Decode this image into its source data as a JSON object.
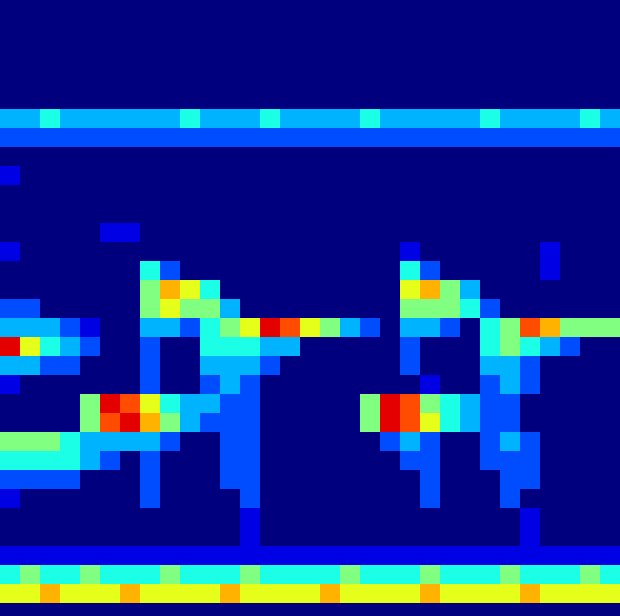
{
  "chart_data": {
    "type": "heatmap",
    "tick_labels": false,
    "zlim": [
      0,
      10
    ],
    "cells": [
      [
        0,
        0,
        0,
        0,
        0,
        0,
        0,
        0,
        0,
        0,
        0,
        0,
        0,
        0,
        0,
        0,
        0,
        0,
        0,
        0,
        0,
        0,
        0,
        0,
        0,
        0,
        0,
        0,
        0,
        0,
        0
      ],
      [
        0,
        0,
        0,
        0,
        0,
        0,
        0,
        0,
        0,
        0,
        0,
        0,
        0,
        0,
        0,
        0,
        0,
        0,
        0,
        0,
        0,
        0,
        0,
        0,
        0,
        0,
        0,
        0,
        0,
        0,
        0
      ],
      [
        0,
        0,
        0,
        0,
        0,
        0,
        0,
        0,
        0,
        0,
        0,
        0,
        0,
        0,
        0,
        0,
        0,
        0,
        0,
        0,
        0,
        0,
        0,
        0,
        0,
        0,
        0,
        0,
        0,
        0,
        0
      ],
      [
        0,
        0,
        0,
        0,
        0,
        0,
        0,
        0,
        0,
        0,
        0,
        0,
        0,
        0,
        0,
        0,
        0,
        0,
        0,
        0,
        0,
        0,
        0,
        0,
        0,
        0,
        0,
        0,
        0,
        0,
        0
      ],
      [
        0,
        0,
        0,
        0,
        0,
        0,
        0,
        0,
        0,
        0,
        0,
        0,
        0,
        0,
        0,
        0,
        0,
        0,
        0,
        0,
        0,
        0,
        0,
        0,
        0,
        0,
        0,
        0,
        0,
        0,
        0
      ],
      [
        3,
        3,
        4,
        3,
        3,
        3,
        3,
        3,
        3,
        4,
        3,
        3,
        3,
        4,
        3,
        3,
        3,
        3,
        4,
        3,
        3,
        3,
        3,
        3,
        4,
        3,
        3,
        3,
        3,
        4,
        3
      ],
      [
        2,
        2,
        2,
        2,
        2,
        2,
        2,
        2,
        2,
        2,
        2,
        2,
        2,
        2,
        2,
        2,
        2,
        2,
        2,
        2,
        2,
        2,
        2,
        2,
        2,
        2,
        2,
        2,
        2,
        2,
        2
      ],
      [
        0,
        0,
        0,
        0,
        0,
        0,
        0,
        0,
        0,
        0,
        0,
        0,
        0,
        0,
        0,
        0,
        0,
        0,
        0,
        0,
        0,
        0,
        0,
        0,
        0,
        0,
        0,
        0,
        0,
        0,
        0
      ],
      [
        1,
        0,
        0,
        0,
        0,
        0,
        0,
        0,
        0,
        0,
        0,
        0,
        0,
        0,
        0,
        0,
        0,
        0,
        0,
        0,
        0,
        0,
        0,
        0,
        0,
        0,
        0,
        0,
        0,
        0,
        0
      ],
      [
        0,
        0,
        0,
        0,
        0,
        0,
        0,
        0,
        0,
        0,
        0,
        0,
        0,
        0,
        0,
        0,
        0,
        0,
        0,
        0,
        0,
        0,
        0,
        0,
        0,
        0,
        0,
        0,
        0,
        0,
        0
      ],
      [
        0,
        0,
        0,
        0,
        0,
        0,
        0,
        0,
        0,
        0,
        0,
        0,
        0,
        0,
        0,
        0,
        0,
        0,
        0,
        0,
        0,
        0,
        0,
        0,
        0,
        0,
        0,
        0,
        0,
        0,
        0
      ],
      [
        0,
        0,
        0,
        0,
        0,
        1,
        1,
        0,
        0,
        0,
        0,
        0,
        0,
        0,
        0,
        0,
        0,
        0,
        0,
        0,
        0,
        0,
        0,
        0,
        0,
        0,
        0,
        0,
        0,
        0,
        0
      ],
      [
        1,
        0,
        0,
        0,
        0,
        0,
        0,
        0,
        0,
        0,
        0,
        0,
        0,
        0,
        0,
        0,
        0,
        0,
        0,
        0,
        1,
        0,
        0,
        0,
        0,
        0,
        0,
        1,
        0,
        0,
        0
      ],
      [
        0,
        0,
        0,
        0,
        0,
        0,
        0,
        4,
        2,
        0,
        0,
        0,
        0,
        0,
        0,
        0,
        0,
        0,
        0,
        0,
        4,
        2,
        0,
        0,
        0,
        0,
        0,
        1,
        0,
        0,
        0
      ],
      [
        0,
        0,
        0,
        0,
        0,
        0,
        0,
        5,
        7,
        6,
        4,
        0,
        0,
        0,
        0,
        0,
        0,
        0,
        0,
        0,
        6,
        7,
        5,
        3,
        0,
        0,
        0,
        0,
        0,
        0,
        0
      ],
      [
        2,
        2,
        0,
        0,
        0,
        0,
        0,
        5,
        6,
        5,
        5,
        3,
        0,
        0,
        0,
        0,
        0,
        0,
        0,
        0,
        5,
        5,
        5,
        4,
        2,
        0,
        0,
        0,
        0,
        0,
        0
      ],
      [
        3,
        3,
        3,
        2,
        1,
        0,
        0,
        3,
        3,
        2,
        4,
        5,
        6,
        9,
        8,
        6,
        5,
        3,
        2,
        0,
        3,
        3,
        2,
        0,
        4,
        5,
        8,
        7,
        5,
        5,
        5
      ],
      [
        9,
        6,
        4,
        3,
        2,
        0,
        0,
        2,
        0,
        0,
        4,
        4,
        4,
        3,
        3,
        0,
        0,
        0,
        0,
        0,
        2,
        0,
        0,
        0,
        4,
        5,
        4,
        3,
        2,
        0,
        0
      ],
      [
        3,
        3,
        2,
        2,
        0,
        0,
        0,
        2,
        0,
        0,
        3,
        3,
        3,
        2,
        0,
        0,
        0,
        0,
        0,
        0,
        2,
        0,
        0,
        0,
        3,
        3,
        2,
        0,
        0,
        0,
        0
      ],
      [
        1,
        0,
        0,
        0,
        0,
        0,
        0,
        2,
        0,
        0,
        2,
        3,
        2,
        0,
        0,
        0,
        0,
        0,
        0,
        0,
        0,
        1,
        0,
        0,
        2,
        3,
        2,
        0,
        0,
        0,
        0
      ],
      [
        0,
        0,
        0,
        0,
        5,
        9,
        8,
        6,
        4,
        3,
        3,
        2,
        2,
        0,
        0,
        0,
        0,
        0,
        5,
        9,
        8,
        5,
        4,
        3,
        2,
        2,
        0,
        0,
        0,
        0,
        0
      ],
      [
        0,
        0,
        0,
        0,
        5,
        8,
        9,
        7,
        5,
        3,
        2,
        2,
        2,
        0,
        0,
        0,
        0,
        0,
        5,
        9,
        8,
        6,
        4,
        3,
        2,
        2,
        0,
        0,
        0,
        0,
        0
      ],
      [
        5,
        5,
        5,
        4,
        3,
        3,
        3,
        3,
        2,
        0,
        0,
        2,
        2,
        0,
        0,
        0,
        0,
        0,
        0,
        2,
        3,
        2,
        0,
        0,
        2,
        3,
        2,
        0,
        0,
        0,
        0
      ],
      [
        4,
        4,
        4,
        4,
        3,
        2,
        0,
        2,
        0,
        0,
        0,
        2,
        2,
        0,
        0,
        0,
        0,
        0,
        0,
        0,
        2,
        2,
        0,
        0,
        2,
        2,
        2,
        0,
        0,
        0,
        0
      ],
      [
        2,
        2,
        2,
        2,
        0,
        0,
        0,
        2,
        0,
        0,
        0,
        2,
        2,
        0,
        0,
        0,
        0,
        0,
        0,
        0,
        0,
        2,
        0,
        0,
        0,
        2,
        2,
        0,
        0,
        0,
        0
      ],
      [
        1,
        0,
        0,
        0,
        0,
        0,
        0,
        2,
        0,
        0,
        0,
        0,
        2,
        0,
        0,
        0,
        0,
        0,
        0,
        0,
        0,
        2,
        0,
        0,
        0,
        2,
        0,
        0,
        0,
        0,
        0
      ],
      [
        0,
        0,
        0,
        0,
        0,
        0,
        0,
        0,
        0,
        0,
        0,
        0,
        1,
        0,
        0,
        0,
        0,
        0,
        0,
        0,
        0,
        0,
        0,
        0,
        0,
        0,
        1,
        0,
        0,
        0,
        0
      ],
      [
        0,
        0,
        0,
        0,
        0,
        0,
        0,
        0,
        0,
        0,
        0,
        0,
        1,
        0,
        0,
        0,
        0,
        0,
        0,
        0,
        0,
        0,
        0,
        0,
        0,
        0,
        1,
        0,
        0,
        0,
        0
      ],
      [
        1,
        1,
        1,
        1,
        1,
        1,
        1,
        1,
        1,
        1,
        1,
        1,
        1,
        1,
        1,
        1,
        1,
        1,
        1,
        1,
        1,
        1,
        1,
        1,
        1,
        1,
        1,
        1,
        1,
        1,
        1
      ],
      [
        4,
        5,
        4,
        4,
        5,
        4,
        4,
        4,
        5,
        4,
        4,
        4,
        5,
        4,
        4,
        4,
        4,
        5,
        4,
        4,
        4,
        5,
        4,
        4,
        4,
        5,
        4,
        4,
        4,
        5,
        4
      ],
      [
        6,
        6,
        7,
        6,
        6,
        6,
        7,
        6,
        6,
        6,
        6,
        7,
        6,
        6,
        6,
        6,
        7,
        6,
        6,
        6,
        6,
        7,
        6,
        6,
        6,
        6,
        7,
        6,
        6,
        6,
        6
      ]
    ]
  }
}
